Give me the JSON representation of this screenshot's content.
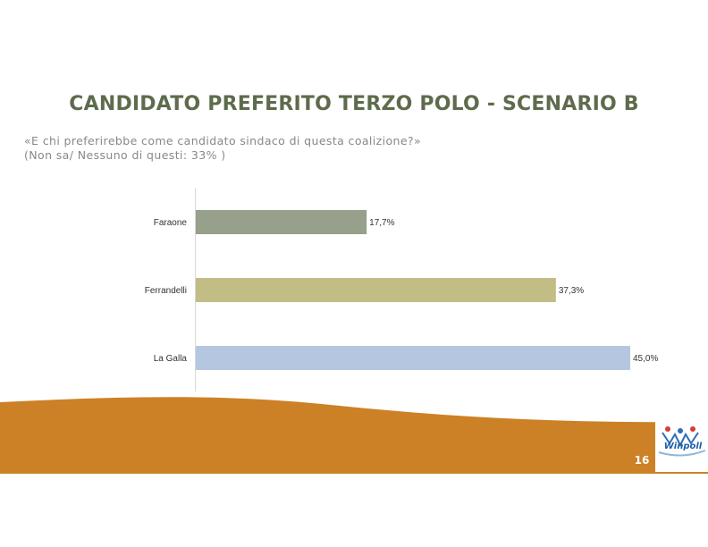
{
  "header": {
    "title": "CANDIDATO PREFERITO TERZO POLO - SCENARIO B",
    "subtitle_line1": "«E chi preferirebbe come candidato sindaco di questa coalizione?»",
    "subtitle_line2": "(Non sa/ Nessuno di questi: 33% )"
  },
  "chart_data": {
    "type": "bar",
    "orientation": "horizontal",
    "categories": [
      "Faraone",
      "Ferrandelli",
      "La Galla"
    ],
    "values": [
      17.7,
      37.3,
      45.0
    ],
    "value_labels": [
      "17,7%",
      "37,3%",
      "45,0%"
    ],
    "colors": [
      "#96a08a",
      "#c2bd85",
      "#b5c7e0"
    ],
    "xlim": [
      0,
      45
    ],
    "grid": false
  },
  "footer": {
    "page_number": "16",
    "logo_text": "Winpoll",
    "band_color": "#cc8126"
  }
}
